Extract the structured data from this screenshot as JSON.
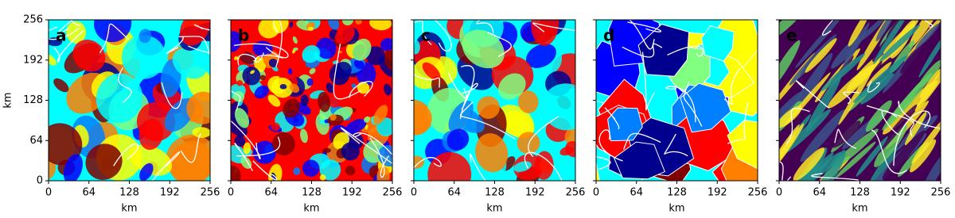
{
  "chart_data": [
    {
      "type": "image",
      "panel_label": "a",
      "colormap": "jet",
      "xlabel": "km",
      "ylabel": "km",
      "xlim": [
        0,
        256
      ],
      "ylim": [
        0,
        256
      ],
      "xticks": [
        0,
        64,
        128,
        192,
        256
      ],
      "yticks": [
        0,
        64,
        128,
        192,
        256
      ],
      "show_ytick_labels": true
    },
    {
      "type": "image",
      "panel_label": "b",
      "colormap": "jet",
      "xlabel": "km",
      "xlim": [
        0,
        256
      ],
      "ylim": [
        0,
        256
      ],
      "xticks": [
        0,
        64,
        128,
        192,
        256
      ],
      "yticks": [
        0,
        64,
        128,
        192,
        256
      ],
      "show_ytick_labels": false
    },
    {
      "type": "image",
      "panel_label": "c",
      "colormap": "jet",
      "xlabel": "km",
      "xlim": [
        0,
        256
      ],
      "ylim": [
        0,
        256
      ],
      "xticks": [
        0,
        64,
        128,
        192,
        256
      ],
      "yticks": [
        0,
        64,
        128,
        192,
        256
      ],
      "show_ytick_labels": false
    },
    {
      "type": "image",
      "panel_label": "d",
      "colormap": "jet",
      "xlabel": "km",
      "xlim": [
        0,
        256
      ],
      "ylim": [
        0,
        256
      ],
      "xticks": [
        0,
        64,
        128,
        192,
        256
      ],
      "yticks": [
        0,
        64,
        128,
        192,
        256
      ],
      "show_ytick_labels": false
    },
    {
      "type": "image",
      "panel_label": "e",
      "colormap": "viridis",
      "xlabel": "km",
      "xlim": [
        0,
        256
      ],
      "ylim": [
        0,
        256
      ],
      "xticks": [
        0,
        64,
        128,
        192,
        256
      ],
      "yticks": [
        0,
        64,
        128,
        192,
        256
      ],
      "show_ytick_labels": false
    }
  ]
}
